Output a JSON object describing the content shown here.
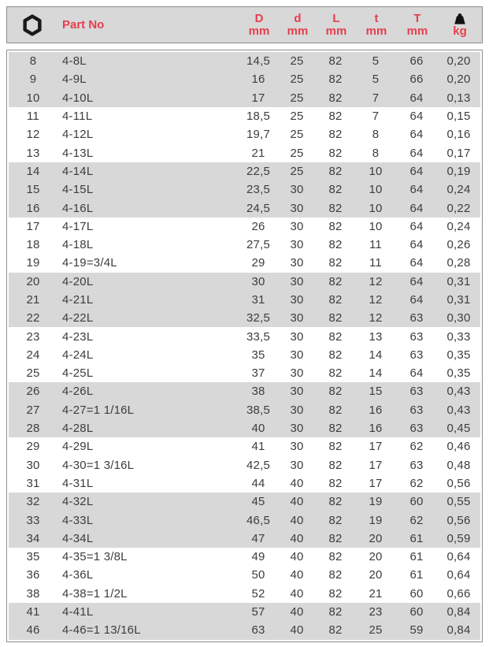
{
  "header": {
    "part_no_label": "Part No",
    "columns": [
      {
        "symbol": "D",
        "unit": "mm"
      },
      {
        "symbol": "d",
        "unit": "mm"
      },
      {
        "symbol": "L",
        "unit": "mm"
      },
      {
        "symbol": "t",
        "unit": "mm"
      },
      {
        "symbol": "T",
        "unit": "mm"
      }
    ],
    "weight_unit": "kg",
    "icons": {
      "size_column": "hex-nut-icon",
      "weight_column": "weight-icon"
    }
  },
  "colors": {
    "accent_red": "#e63e4e",
    "row_shaded": "#d8d8d8",
    "body_text": "#3d3d3d",
    "border_gray": "#8e8e8e"
  },
  "rows": [
    {
      "size": "8",
      "part": "4-8L",
      "D": "14,5",
      "d": "25",
      "L": "82",
      "t": "5",
      "T": "66",
      "kg": "0,20",
      "shaded": true
    },
    {
      "size": "9",
      "part": "4-9L",
      "D": "16",
      "d": "25",
      "L": "82",
      "t": "5",
      "T": "66",
      "kg": "0,20",
      "shaded": true
    },
    {
      "size": "10",
      "part": "4-10L",
      "D": "17",
      "d": "25",
      "L": "82",
      "t": "7",
      "T": "64",
      "kg": "0,13",
      "shaded": true
    },
    {
      "size": "11",
      "part": "4-11L",
      "D": "18,5",
      "d": "25",
      "L": "82",
      "t": "7",
      "T": "64",
      "kg": "0,15",
      "shaded": false
    },
    {
      "size": "12",
      "part": "4-12L",
      "D": "19,7",
      "d": "25",
      "L": "82",
      "t": "8",
      "T": "64",
      "kg": "0,16",
      "shaded": false
    },
    {
      "size": "13",
      "part": "4-13L",
      "D": "21",
      "d": "25",
      "L": "82",
      "t": "8",
      "T": "64",
      "kg": "0,17",
      "shaded": false
    },
    {
      "size": "14",
      "part": "4-14L",
      "D": "22,5",
      "d": "25",
      "L": "82",
      "t": "10",
      "T": "64",
      "kg": "0,19",
      "shaded": true
    },
    {
      "size": "15",
      "part": "4-15L",
      "D": "23,5",
      "d": "30",
      "L": "82",
      "t": "10",
      "T": "64",
      "kg": "0,24",
      "shaded": true
    },
    {
      "size": "16",
      "part": "4-16L",
      "D": "24,5",
      "d": "30",
      "L": "82",
      "t": "10",
      "T": "64",
      "kg": "0,22",
      "shaded": true
    },
    {
      "size": "17",
      "part": "4-17L",
      "D": "26",
      "d": "30",
      "L": "82",
      "t": "10",
      "T": "64",
      "kg": "0,24",
      "shaded": false
    },
    {
      "size": "18",
      "part": "4-18L",
      "D": "27,5",
      "d": "30",
      "L": "82",
      "t": "11",
      "T": "64",
      "kg": "0,26",
      "shaded": false
    },
    {
      "size": "19",
      "part": "4-19=3/4L",
      "D": "29",
      "d": "30",
      "L": "82",
      "t": "11",
      "T": "64",
      "kg": "0,28",
      "shaded": false
    },
    {
      "size": "20",
      "part": "4-20L",
      "D": "30",
      "d": "30",
      "L": "82",
      "t": "12",
      "T": "64",
      "kg": "0,31",
      "shaded": true
    },
    {
      "size": "21",
      "part": "4-21L",
      "D": "31",
      "d": "30",
      "L": "82",
      "t": "12",
      "T": "64",
      "kg": "0,31",
      "shaded": true
    },
    {
      "size": "22",
      "part": "4-22L",
      "D": "32,5",
      "d": "30",
      "L": "82",
      "t": "12",
      "T": "63",
      "kg": "0,30",
      "shaded": true
    },
    {
      "size": "23",
      "part": "4-23L",
      "D": "33,5",
      "d": "30",
      "L": "82",
      "t": "13",
      "T": "63",
      "kg": "0,33",
      "shaded": false
    },
    {
      "size": "24",
      "part": "4-24L",
      "D": "35",
      "d": "30",
      "L": "82",
      "t": "14",
      "T": "63",
      "kg": "0,35",
      "shaded": false
    },
    {
      "size": "25",
      "part": "4-25L",
      "D": "37",
      "d": "30",
      "L": "82",
      "t": "14",
      "T": "64",
      "kg": "0,35",
      "shaded": false
    },
    {
      "size": "26",
      "part": "4-26L",
      "D": "38",
      "d": "30",
      "L": "82",
      "t": "15",
      "T": "63",
      "kg": "0,43",
      "shaded": true
    },
    {
      "size": "27",
      "part": "4-27=1 1/16L",
      "D": "38,5",
      "d": "30",
      "L": "82",
      "t": "16",
      "T": "63",
      "kg": "0,43",
      "shaded": true
    },
    {
      "size": "28",
      "part": "4-28L",
      "D": "40",
      "d": "30",
      "L": "82",
      "t": "16",
      "T": "63",
      "kg": "0,45",
      "shaded": true
    },
    {
      "size": "29",
      "part": "4-29L",
      "D": "41",
      "d": "30",
      "L": "82",
      "t": "17",
      "T": "62",
      "kg": "0,46",
      "shaded": false
    },
    {
      "size": "30",
      "part": "4-30=1 3/16L",
      "D": "42,5",
      "d": "30",
      "L": "82",
      "t": "17",
      "T": "63",
      "kg": "0,48",
      "shaded": false
    },
    {
      "size": "31",
      "part": "4-31L",
      "D": "44",
      "d": "40",
      "L": "82",
      "t": "17",
      "T": "62",
      "kg": "0,56",
      "shaded": false
    },
    {
      "size": "32",
      "part": "4-32L",
      "D": "45",
      "d": "40",
      "L": "82",
      "t": "19",
      "T": "60",
      "kg": "0,55",
      "shaded": true
    },
    {
      "size": "33",
      "part": "4-33L",
      "D": "46,5",
      "d": "40",
      "L": "82",
      "t": "19",
      "T": "62",
      "kg": "0,56",
      "shaded": true
    },
    {
      "size": "34",
      "part": "4-34L",
      "D": "47",
      "d": "40",
      "L": "82",
      "t": "20",
      "T": "61",
      "kg": "0,59",
      "shaded": true
    },
    {
      "size": "35",
      "part": "4-35=1 3/8L",
      "D": "49",
      "d": "40",
      "L": "82",
      "t": "20",
      "T": "61",
      "kg": "0,64",
      "shaded": false
    },
    {
      "size": "36",
      "part": "4-36L",
      "D": "50",
      "d": "40",
      "L": "82",
      "t": "20",
      "T": "61",
      "kg": "0,64",
      "shaded": false
    },
    {
      "size": "38",
      "part": "4-38=1 1/2L",
      "D": "52",
      "d": "40",
      "L": "82",
      "t": "21",
      "T": "60",
      "kg": "0,66",
      "shaded": false
    },
    {
      "size": "41",
      "part": "4-41L",
      "D": "57",
      "d": "40",
      "L": "82",
      "t": "23",
      "T": "60",
      "kg": "0,84",
      "shaded": true
    },
    {
      "size": "46",
      "part": "4-46=1 13/16L",
      "D": "63",
      "d": "40",
      "L": "82",
      "t": "25",
      "T": "59",
      "kg": "0,84",
      "shaded": true
    }
  ]
}
